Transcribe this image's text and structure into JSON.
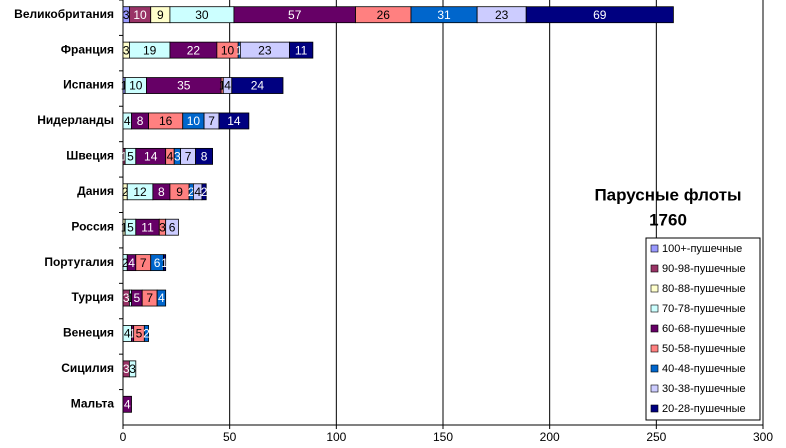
{
  "chart_data": {
    "type": "stacked-bar-horizontal",
    "title": "Парусные флоты",
    "subtitle": "1760",
    "categories": [
      "Великобритания",
      "Франция",
      "Испания",
      "Нидерланды",
      "Швеция",
      "Дания",
      "Россия",
      "Португалия",
      "Турция",
      "Венеция",
      "Сицилия",
      "Мальта"
    ],
    "series": [
      {
        "name": "100+-пушечные",
        "color": "#9999ff",
        "values": [
          3,
          0,
          1,
          0,
          0,
          0,
          0,
          0,
          0,
          0,
          0,
          0
        ]
      },
      {
        "name": "90-98-пушечные",
        "color": "#993366",
        "values": [
          10,
          0,
          0,
          0,
          1,
          0,
          0,
          0,
          3,
          0,
          3,
          0
        ]
      },
      {
        "name": "80-88-пушечные",
        "color": "#ffffcc",
        "values": [
          9,
          3,
          0,
          0,
          0,
          2,
          1,
          0,
          0,
          0,
          0,
          0
        ]
      },
      {
        "name": "70-78-пушечные",
        "color": "#ccffff",
        "values": [
          30,
          19,
          10,
          4,
          5,
          12,
          5,
          2,
          1,
          4,
          3,
          0
        ]
      },
      {
        "name": "60-68-пушечные",
        "color": "#660066",
        "values": [
          57,
          22,
          35,
          8,
          14,
          8,
          11,
          4,
          5,
          1,
          0,
          4
        ]
      },
      {
        "name": "50-58-пушечные",
        "color": "#ff8080",
        "values": [
          26,
          10,
          1,
          16,
          4,
          9,
          3,
          7,
          7,
          5,
          0,
          0
        ]
      },
      {
        "name": "40-48-пушечные",
        "color": "#0066cc",
        "values": [
          31,
          1,
          0,
          10,
          3,
          2,
          0,
          6,
          4,
          2,
          0,
          0
        ]
      },
      {
        "name": "30-38-пушечные",
        "color": "#ccccff",
        "values": [
          23,
          23,
          4,
          7,
          7,
          4,
          6,
          0,
          0,
          0,
          0,
          0
        ]
      },
      {
        "name": "20-28-пушечные",
        "color": "#000080",
        "values": [
          69,
          11,
          24,
          14,
          8,
          2,
          0,
          1,
          0,
          0,
          0,
          0
        ]
      }
    ],
    "xlim": [
      0,
      300
    ],
    "xticks": [
      0,
      50,
      100,
      150,
      200,
      250,
      300
    ],
    "grid": true
  }
}
